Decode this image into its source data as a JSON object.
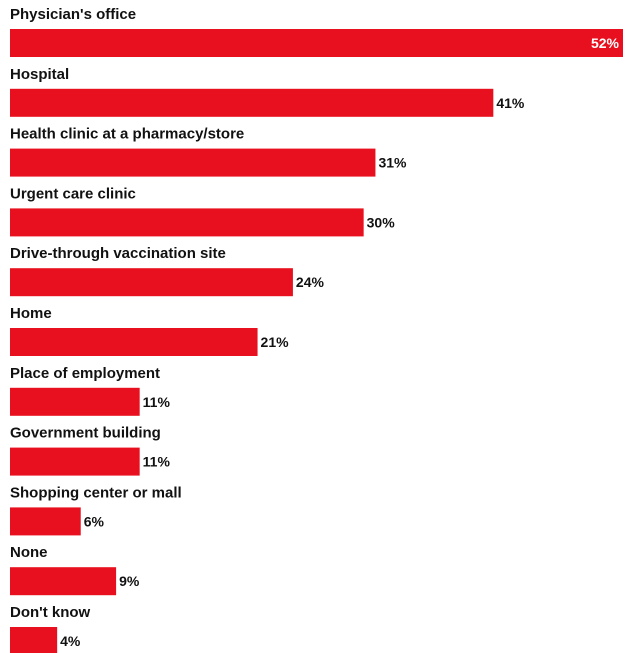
{
  "chart_data": {
    "type": "bar",
    "orientation": "horizontal",
    "categories": [
      "Physician's office",
      "Hospital",
      "Health clinic at a pharmacy/store",
      "Urgent care clinic",
      "Drive-through vaccination site",
      "Home",
      "Place of employment",
      "Government building",
      "Shopping center or mall",
      "None",
      "Don't know"
    ],
    "values": [
      52,
      41,
      31,
      30,
      24,
      21,
      11,
      11,
      6,
      9,
      4
    ],
    "value_labels": [
      "52%",
      "41%",
      "31%",
      "30%",
      "24%",
      "21%",
      "11%",
      "11%",
      "6%",
      "9%",
      "4%"
    ],
    "unit": "%",
    "xlim": [
      0,
      52
    ],
    "grid": false,
    "legend": "none",
    "colors": {
      "bar": "#E8101E",
      "text": "#111111",
      "inside_label": "#ffffff"
    }
  }
}
